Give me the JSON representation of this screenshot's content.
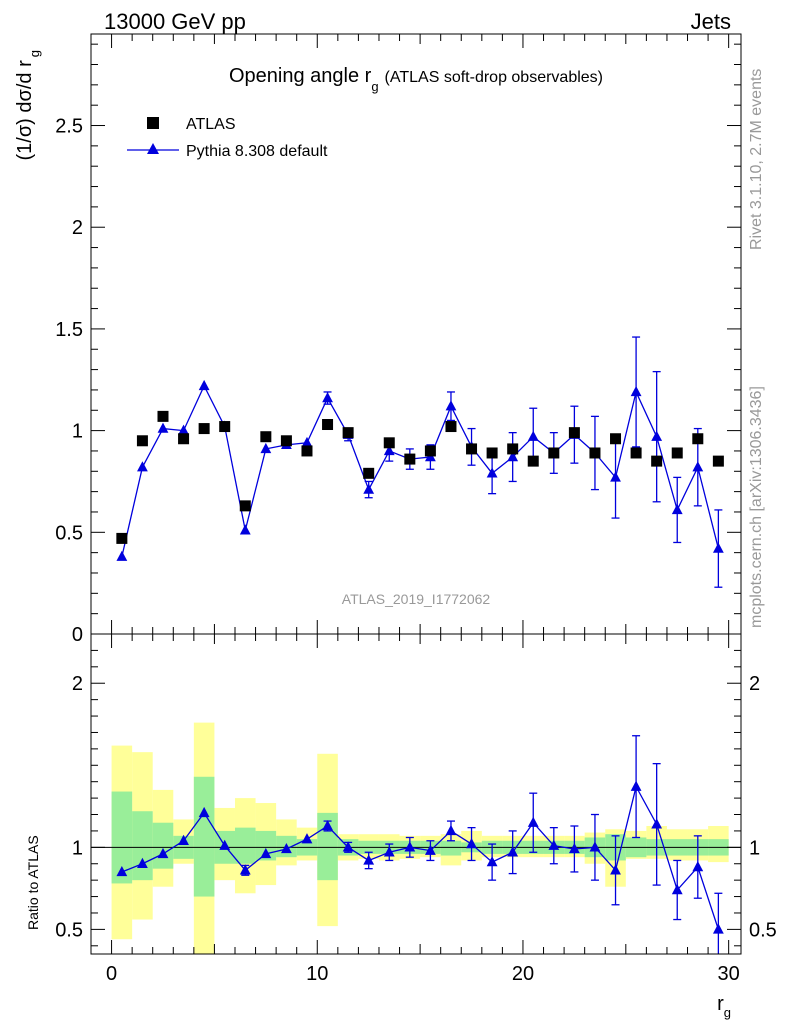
{
  "header": {
    "left": "13000 GeV pp",
    "right": "Jets"
  },
  "side_labels": {
    "rivet": "Rivet 3.1.10,  2.7M events",
    "mcplots": "mcplots.cern.ch [arXiv:1306.3436]"
  },
  "chart_data": {
    "type": "scatter",
    "title": "Opening angle r_g (ATLAS soft-drop observables)",
    "title_main": "Opening angle r",
    "title_sub": "g",
    "title_paren": "(ATLAS soft-drop observables)",
    "analysis": "ATLAS_2019_I1772062",
    "xlabel": "r",
    "xlabel_sub": "g",
    "ylabel_main": "(1/σ) dσ/d r",
    "ylabel_sub": "g",
    "ratio_ylabel": "Ratio to ATLAS",
    "xlim": [
      -1,
      30.6
    ],
    "ylim": [
      0,
      2.95
    ],
    "ratio_ylim": [
      0.35,
      2.3
    ],
    "x_ticks": [
      0,
      10,
      20,
      30
    ],
    "x_tick_labels": [
      "0",
      "10",
      "20",
      "30"
    ],
    "y_ticks": [
      0,
      0.5,
      1,
      1.5,
      2,
      2.5
    ],
    "y_tick_labels": [
      "0",
      "0.5",
      "1",
      "1.5",
      "2",
      "2.5"
    ],
    "ratio_ticks": [
      0.5,
      1,
      2
    ],
    "ratio_tick_labels": [
      "0.5",
      "1",
      "2"
    ],
    "legend_position": "top-left",
    "colors": {
      "data": "#000000",
      "mc": "#0000dd",
      "band_inner": "#99ee99",
      "band_outer": "#ffff99",
      "side_text": "#999999"
    },
    "bins": [
      [
        0,
        1
      ],
      [
        1,
        2
      ],
      [
        2,
        3
      ],
      [
        3,
        4
      ],
      [
        4,
        5
      ],
      [
        5,
        6
      ],
      [
        6,
        7
      ],
      [
        7,
        8
      ],
      [
        8,
        9
      ],
      [
        9,
        10
      ],
      [
        10,
        11
      ],
      [
        11,
        12
      ],
      [
        12,
        13
      ],
      [
        13,
        14
      ],
      [
        14,
        15
      ],
      [
        15,
        16
      ],
      [
        16,
        17
      ],
      [
        17,
        18
      ],
      [
        18,
        19
      ],
      [
        19,
        20
      ],
      [
        20,
        21
      ],
      [
        21,
        22
      ],
      [
        22,
        23
      ],
      [
        23,
        24
      ],
      [
        24,
        25
      ],
      [
        25,
        26
      ],
      [
        26,
        27
      ],
      [
        27,
        28
      ],
      [
        28,
        29
      ],
      [
        29,
        30
      ]
    ],
    "series": [
      {
        "name": "ATLAS",
        "marker": "square",
        "x": [
          0.5,
          1.5,
          2.5,
          3.5,
          4.5,
          5.5,
          6.5,
          7.5,
          8.5,
          9.5,
          10.5,
          11.5,
          12.5,
          13.5,
          14.5,
          15.5,
          16.5,
          17.5,
          18.5,
          19.5,
          20.5,
          21.5,
          22.5,
          23.5,
          24.5,
          25.5,
          26.5,
          27.5,
          28.5,
          29.5
        ],
        "y": [
          0.47,
          0.95,
          1.07,
          0.96,
          1.01,
          1.02,
          0.63,
          0.97,
          0.95,
          0.9,
          1.03,
          0.99,
          0.79,
          0.94,
          0.86,
          0.9,
          1.02,
          0.91,
          0.89,
          0.91,
          0.85,
          0.89,
          0.99,
          0.89,
          0.96,
          0.89,
          0.85,
          0.89,
          0.96,
          0.85
        ],
        "ratio_band_inner": [
          [
            0.78,
            1.34
          ],
          [
            0.8,
            1.22
          ],
          [
            0.87,
            1.15
          ],
          [
            0.93,
            1.07
          ],
          [
            0.7,
            1.43
          ],
          [
            0.9,
            1.1
          ],
          [
            0.9,
            1.12
          ],
          [
            0.92,
            1.1
          ],
          [
            0.94,
            1.07
          ],
          [
            0.95,
            1.05
          ],
          [
            0.8,
            1.21
          ],
          [
            0.95,
            1.05
          ],
          [
            0.96,
            1.04
          ],
          [
            0.96,
            1.04
          ],
          [
            0.96,
            1.04
          ],
          [
            0.96,
            1.04
          ],
          [
            0.95,
            1.04
          ],
          [
            0.97,
            1.03
          ],
          [
            0.96,
            1.04
          ],
          [
            0.96,
            1.04
          ],
          [
            0.96,
            1.04
          ],
          [
            0.96,
            1.04
          ],
          [
            0.96,
            1.04
          ],
          [
            0.94,
            1.06
          ],
          [
            0.92,
            1.08
          ],
          [
            0.94,
            1.06
          ],
          [
            0.95,
            1.05
          ],
          [
            0.95,
            1.05
          ],
          [
            0.95,
            1.05
          ],
          [
            0.95,
            1.05
          ]
        ],
        "ratio_band_outer": [
          [
            0.44,
            1.62
          ],
          [
            0.56,
            1.58
          ],
          [
            0.76,
            1.35
          ],
          [
            0.9,
            1.17
          ],
          [
            0.35,
            1.76
          ],
          [
            0.8,
            1.24
          ],
          [
            0.72,
            1.3
          ],
          [
            0.77,
            1.27
          ],
          [
            0.89,
            1.17
          ],
          [
            0.92,
            1.12
          ],
          [
            0.52,
            1.57
          ],
          [
            0.92,
            1.08
          ],
          [
            0.93,
            1.08
          ],
          [
            0.92,
            1.08
          ],
          [
            0.93,
            1.07
          ],
          [
            0.94,
            1.07
          ],
          [
            0.89,
            1.08
          ],
          [
            0.92,
            1.1
          ],
          [
            0.94,
            1.07
          ],
          [
            0.94,
            1.07
          ],
          [
            0.94,
            1.07
          ],
          [
            0.94,
            1.07
          ],
          [
            0.94,
            1.07
          ],
          [
            0.9,
            1.09
          ],
          [
            0.76,
            1.11
          ],
          [
            0.93,
            1.1
          ],
          [
            0.93,
            1.13
          ],
          [
            0.92,
            1.11
          ],
          [
            0.92,
            1.11
          ],
          [
            0.91,
            1.13
          ]
        ]
      },
      {
        "name": "Pythia 8.308 default",
        "marker": "triangle",
        "x": [
          0.5,
          1.5,
          2.5,
          3.5,
          4.5,
          5.5,
          6.5,
          7.5,
          8.5,
          9.5,
          10.5,
          11.5,
          12.5,
          13.5,
          14.5,
          15.5,
          16.5,
          17.5,
          18.5,
          19.5,
          20.5,
          21.5,
          22.5,
          23.5,
          24.5,
          25.5,
          26.5,
          27.5,
          28.5,
          29.5
        ],
        "y": [
          0.38,
          0.82,
          1.01,
          1.0,
          1.22,
          1.02,
          0.51,
          0.91,
          0.93,
          0.94,
          1.16,
          0.98,
          0.71,
          0.9,
          0.86,
          0.87,
          1.12,
          0.92,
          0.79,
          0.87,
          0.97,
          0.89,
          0.98,
          0.89,
          0.77,
          1.19,
          0.97,
          0.61,
          0.82,
          0.42
        ],
        "yerr": [
          0.02,
          0.02,
          0.02,
          0.02,
          0.02,
          0.02,
          0.02,
          0.02,
          0.02,
          0.02,
          0.03,
          0.03,
          0.04,
          0.05,
          0.05,
          0.06,
          0.07,
          0.09,
          0.1,
          0.12,
          0.14,
          0.1,
          0.14,
          0.18,
          0.2,
          0.27,
          0.32,
          0.16,
          0.19,
          0.19
        ],
        "ratio": [
          0.85,
          0.9,
          0.96,
          1.04,
          1.21,
          1.01,
          0.86,
          0.96,
          0.99,
          1.05,
          1.13,
          1.0,
          0.92,
          0.97,
          1.0,
          0.98,
          1.1,
          1.02,
          0.91,
          0.97,
          1.15,
          1.01,
          0.99,
          1.0,
          0.86,
          1.37,
          1.14,
          0.74,
          0.88,
          0.5
        ],
        "ratio_err": [
          0.02,
          0.02,
          0.02,
          0.02,
          0.02,
          0.02,
          0.03,
          0.02,
          0.02,
          0.02,
          0.03,
          0.03,
          0.05,
          0.05,
          0.06,
          0.06,
          0.06,
          0.1,
          0.11,
          0.13,
          0.18,
          0.11,
          0.14,
          0.2,
          0.21,
          0.31,
          0.37,
          0.18,
          0.19,
          0.22
        ]
      }
    ]
  }
}
